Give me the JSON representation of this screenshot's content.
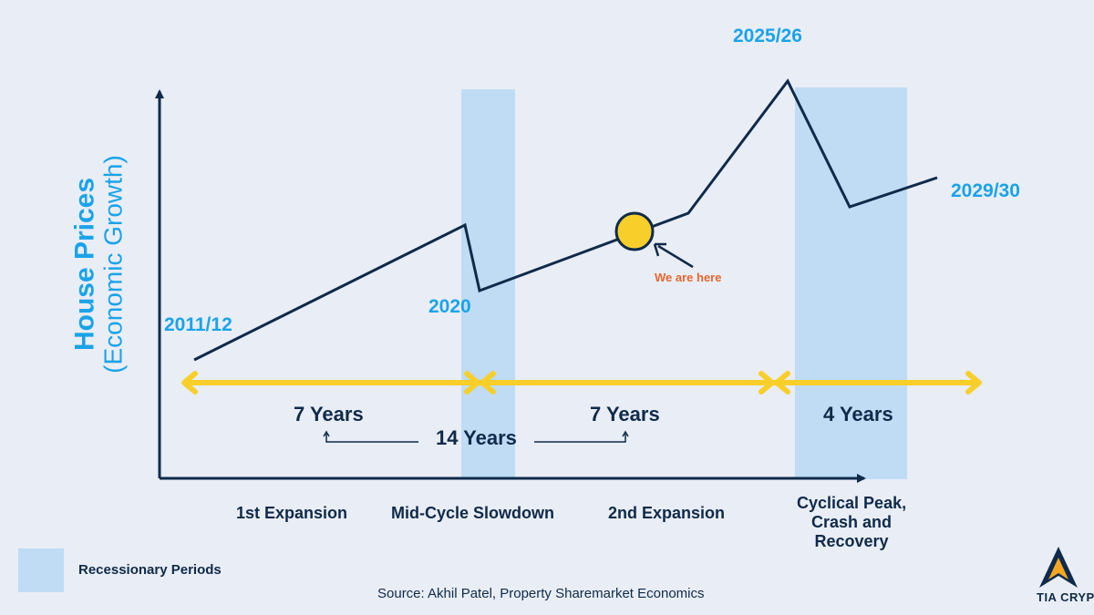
{
  "y_axis": {
    "title": "House Prices",
    "subtitle": "(Economic Growth)"
  },
  "points": {
    "start": "2011/12",
    "mid": "2020",
    "peak": "2025/26",
    "end": "2029/30"
  },
  "marker": {
    "label": "We are here",
    "color": "#f8cf2a"
  },
  "durations": {
    "first": "7 Years",
    "second": "7 Years",
    "total": "14 Years",
    "third": "4 Years"
  },
  "phases": {
    "p1": "1st Expansion",
    "p2": "Mid-Cycle Slowdown",
    "p3": "2nd Expansion",
    "p4_line1": "Cyclical Peak,",
    "p4_line2": "Crash and",
    "p4_line3": "Recovery"
  },
  "legend": {
    "label": "Recessionary Periods",
    "color": "#bfdcf4"
  },
  "source": "Source: Akhil Patel, Property Sharemarket Economics",
  "logo": {
    "text": "TIA CRYPTO"
  },
  "colors": {
    "background": "#e9edf5",
    "accent_blue": "#1aa3ea",
    "dark_navy": "#0f2a4a",
    "arrow_yellow": "#f8cf2a",
    "annotation_orange": "#e8662c",
    "recession_band": "#bfdcf4"
  }
}
